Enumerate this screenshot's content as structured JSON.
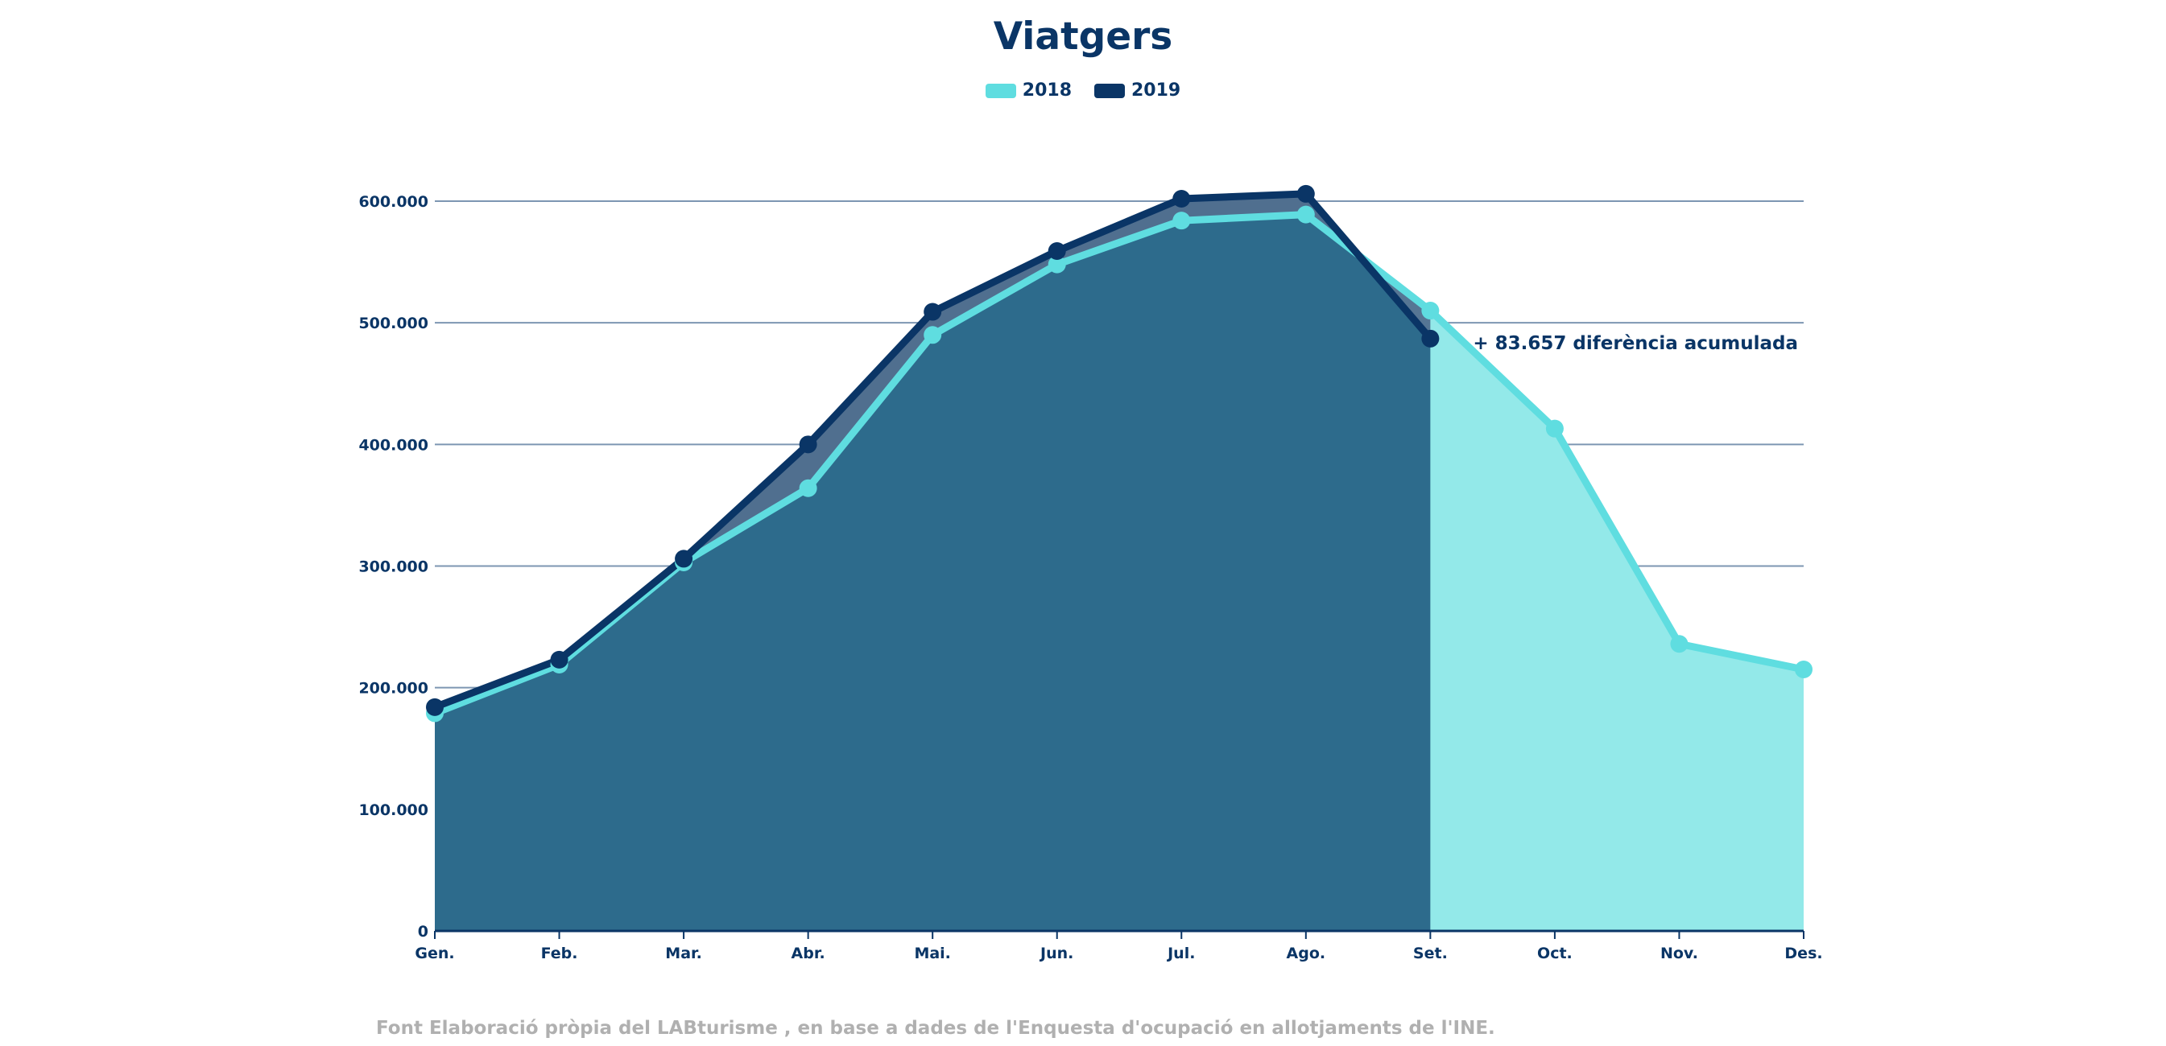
{
  "chart_data": {
    "type": "area",
    "title": "Viatgers",
    "categories": [
      "Gen.",
      "Feb.",
      "Mar.",
      "Abr.",
      "Mai.",
      "Jun.",
      "Jul.",
      "Ago.",
      "Set.",
      "Oct.",
      "Nov.",
      "Des."
    ],
    "series": [
      {
        "name": "2018",
        "color": "#5fdde0",
        "fill": "#93e9e9",
        "values": [
          179000,
          219000,
          303000,
          364000,
          490000,
          548000,
          584000,
          589000,
          510000,
          413000,
          236000,
          215000
        ]
      },
      {
        "name": "2019",
        "color": "#0a3566",
        "fill": "#2d6b8c",
        "values": [
          184000,
          223000,
          306000,
          400000,
          509000,
          559000,
          602000,
          606000,
          487000,
          null,
          null,
          null
        ]
      }
    ],
    "y_ticks": [
      "0",
      "100.000",
      "200.000",
      "300.000",
      "400.000",
      "500.000",
      "600.000"
    ],
    "ylim": [
      0,
      600000
    ],
    "grid": true,
    "legend_position": "top-center",
    "annotation": "+ 83.657 diferència acumulada"
  },
  "source": "Font Elaboració pròpia del LABturisme , en base a dades de l'Enquesta d'ocupació en allotjaments de l'INE."
}
